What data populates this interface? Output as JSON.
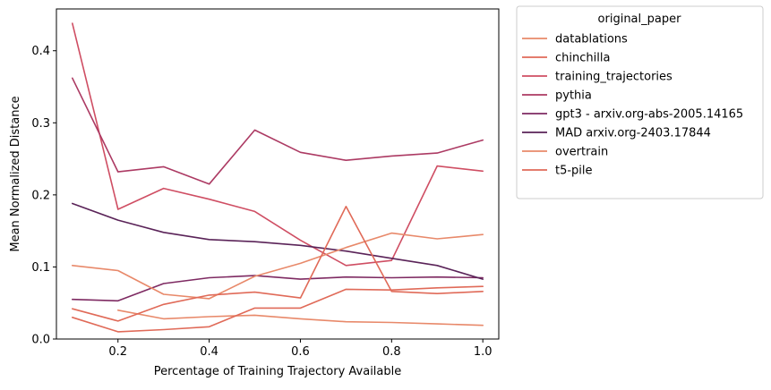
{
  "chart_data": {
    "type": "line",
    "xlabel": "Percentage of Training Trajectory Available",
    "ylabel": "Mean Normalized Distance",
    "xlim": [
      0.065,
      1.035
    ],
    "ylim": [
      0,
      0.458
    ],
    "xticks": [
      "0.2",
      "0.4",
      "0.6",
      "0.8",
      "1.0"
    ],
    "xtick_values": [
      0.2,
      0.4,
      0.6,
      0.8,
      1.0
    ],
    "yticks": [
      "0.0",
      "0.1",
      "0.2",
      "0.3",
      "0.4"
    ],
    "ytick_values": [
      0.0,
      0.1,
      0.2,
      0.3,
      0.4
    ],
    "grid": false,
    "legend": {
      "title": "original_paper",
      "placement": "outside-upper-right"
    },
    "series": [
      {
        "name": "datablations",
        "color": "#E8896A",
        "points": [
          [
            0.2,
            0.04
          ],
          [
            0.3,
            0.028
          ],
          [
            0.4,
            0.031
          ],
          [
            0.5,
            0.033
          ],
          [
            0.6,
            0.028
          ],
          [
            0.7,
            0.024
          ],
          [
            0.8,
            0.023
          ],
          [
            0.9,
            0.021
          ],
          [
            1.0,
            0.019
          ]
        ]
      },
      {
        "name": "chinchilla",
        "color": "#E06A58",
        "points": [
          [
            0.1,
            0.03
          ],
          [
            0.2,
            0.01
          ],
          [
            0.3,
            0.013
          ],
          [
            0.4,
            0.017
          ],
          [
            0.5,
            0.043
          ],
          [
            0.6,
            0.043
          ],
          [
            0.7,
            0.069
          ],
          [
            0.8,
            0.068
          ],
          [
            0.9,
            0.071
          ],
          [
            1.0,
            0.073
          ]
        ]
      },
      {
        "name": "training_trajectories",
        "color": "#CF4E63",
        "points": [
          [
            0.1,
            0.438
          ],
          [
            0.2,
            0.18
          ],
          [
            0.3,
            0.209
          ],
          [
            0.4,
            0.194
          ],
          [
            0.5,
            0.177
          ],
          [
            0.6,
            0.137
          ],
          [
            0.7,
            0.102
          ],
          [
            0.8,
            0.109
          ],
          [
            0.9,
            0.24
          ],
          [
            1.0,
            0.233
          ]
        ]
      },
      {
        "name": "pythia",
        "color": "#AC3A63",
        "points": [
          [
            0.1,
            0.362
          ],
          [
            0.2,
            0.232
          ],
          [
            0.3,
            0.239
          ],
          [
            0.4,
            0.215
          ],
          [
            0.5,
            0.29
          ],
          [
            0.6,
            0.259
          ],
          [
            0.7,
            0.248
          ],
          [
            0.8,
            0.254
          ],
          [
            0.9,
            0.258
          ],
          [
            1.0,
            0.276
          ]
        ]
      },
      {
        "name": "gpt3 - arxiv.org-abs-2005.14165",
        "color": "#7E2A62",
        "points": [
          [
            0.1,
            0.055
          ],
          [
            0.2,
            0.053
          ],
          [
            0.3,
            0.077
          ],
          [
            0.4,
            0.085
          ],
          [
            0.5,
            0.088
          ],
          [
            0.6,
            0.083
          ],
          [
            0.7,
            0.086
          ],
          [
            0.8,
            0.085
          ],
          [
            0.9,
            0.086
          ],
          [
            1.0,
            0.085
          ]
        ]
      },
      {
        "name": "MAD arxiv.org-2403.17844",
        "color": "#5A2358",
        "points": [
          [
            0.1,
            0.188
          ],
          [
            0.2,
            0.165
          ],
          [
            0.3,
            0.148
          ],
          [
            0.4,
            0.138
          ],
          [
            0.5,
            0.135
          ],
          [
            0.6,
            0.13
          ],
          [
            0.7,
            0.122
          ],
          [
            0.8,
            0.112
          ],
          [
            0.9,
            0.102
          ],
          [
            1.0,
            0.083
          ]
        ]
      },
      {
        "name": "overtrain",
        "color": "#E8896A",
        "points": [
          [
            0.1,
            0.102
          ],
          [
            0.2,
            0.095
          ],
          [
            0.3,
            0.062
          ],
          [
            0.4,
            0.056
          ],
          [
            0.5,
            0.087
          ],
          [
            0.6,
            0.105
          ],
          [
            0.7,
            0.127
          ],
          [
            0.8,
            0.147
          ],
          [
            0.9,
            0.139
          ],
          [
            1.0,
            0.145
          ]
        ]
      },
      {
        "name": "t5-pile",
        "color": "#E06A58",
        "points": [
          [
            0.1,
            0.042
          ],
          [
            0.2,
            0.025
          ],
          [
            0.3,
            0.048
          ],
          [
            0.4,
            0.061
          ],
          [
            0.5,
            0.065
          ],
          [
            0.6,
            0.057
          ],
          [
            0.7,
            0.184
          ],
          [
            0.8,
            0.066
          ],
          [
            0.9,
            0.063
          ],
          [
            1.0,
            0.066
          ]
        ]
      }
    ]
  }
}
